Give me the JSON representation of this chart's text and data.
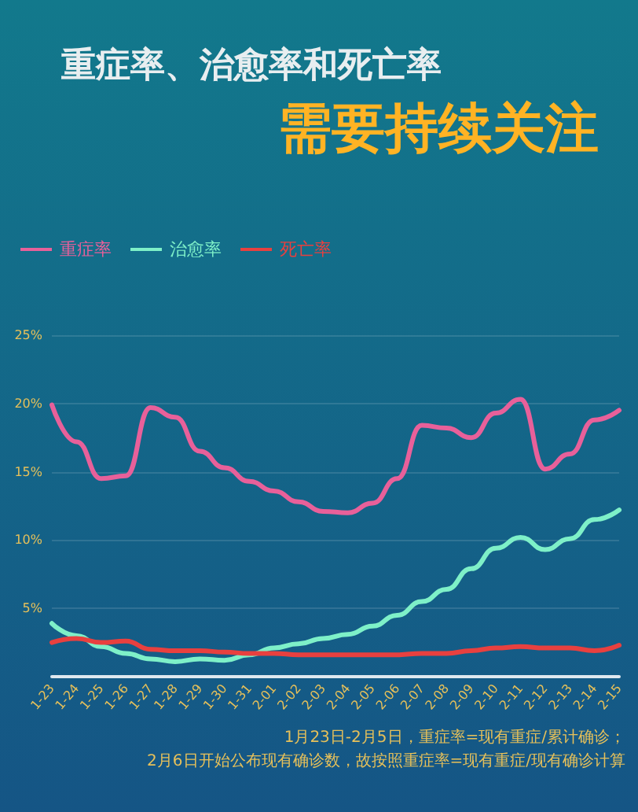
{
  "chart_data": {
    "type": "line",
    "title": "重症率、治愈率和死亡率",
    "subtitle": "需要持续关注",
    "categories": [
      "1-23",
      "1-24",
      "1-25",
      "1-26",
      "1-27",
      "1-28",
      "1-29",
      "1-30",
      "1-31",
      "2-01",
      "2-02",
      "2-03",
      "2-04",
      "2-05",
      "2-06",
      "2-07",
      "2-08",
      "2-09",
      "2-10",
      "2-11",
      "2-12",
      "2-13",
      "2-14",
      "2-15"
    ],
    "series": [
      {
        "name": "重症率",
        "color": "#e8609a",
        "values": [
          19.9,
          17.2,
          14.5,
          14.7,
          19.7,
          19.0,
          16.5,
          15.3,
          14.3,
          13.6,
          12.8,
          12.1,
          12.0,
          12.7,
          14.5,
          18.4,
          18.2,
          17.5,
          19.3,
          20.3,
          15.2,
          16.3,
          18.8,
          19.5
        ]
      },
      {
        "name": "治愈率",
        "color": "#7ef0c8",
        "values": [
          3.9,
          3.0,
          2.2,
          1.7,
          1.3,
          1.1,
          1.3,
          1.2,
          1.6,
          2.1,
          2.4,
          2.8,
          3.1,
          3.7,
          4.5,
          5.5,
          6.4,
          7.9,
          9.4,
          10.2,
          9.3,
          10.1,
          11.5,
          12.2
        ]
      },
      {
        "name": "死亡率",
        "color": "#e8403f",
        "values": [
          2.5,
          2.8,
          2.5,
          2.6,
          2.0,
          1.9,
          1.9,
          1.8,
          1.7,
          1.7,
          1.6,
          1.6,
          1.6,
          1.6,
          1.6,
          1.7,
          1.7,
          1.9,
          2.1,
          2.2,
          2.1,
          2.1,
          1.9,
          2.3
        ]
      }
    ],
    "ylim": [
      0,
      25
    ],
    "yticks": [
      {
        "value": 5,
        "label": "5%"
      },
      {
        "value": 10,
        "label": "10%"
      },
      {
        "value": 15,
        "label": "15%"
      },
      {
        "value": 20,
        "label": "20%"
      },
      {
        "value": 25,
        "label": "25%"
      }
    ],
    "grid": "y",
    "legend": "top left",
    "annotations": [
      "1月23日-2月5日，重症率=现有重症/累计确诊；",
      "2月6日开始公布现有确诊数，故按照重症率=现有重症/现有确诊计算"
    ]
  }
}
